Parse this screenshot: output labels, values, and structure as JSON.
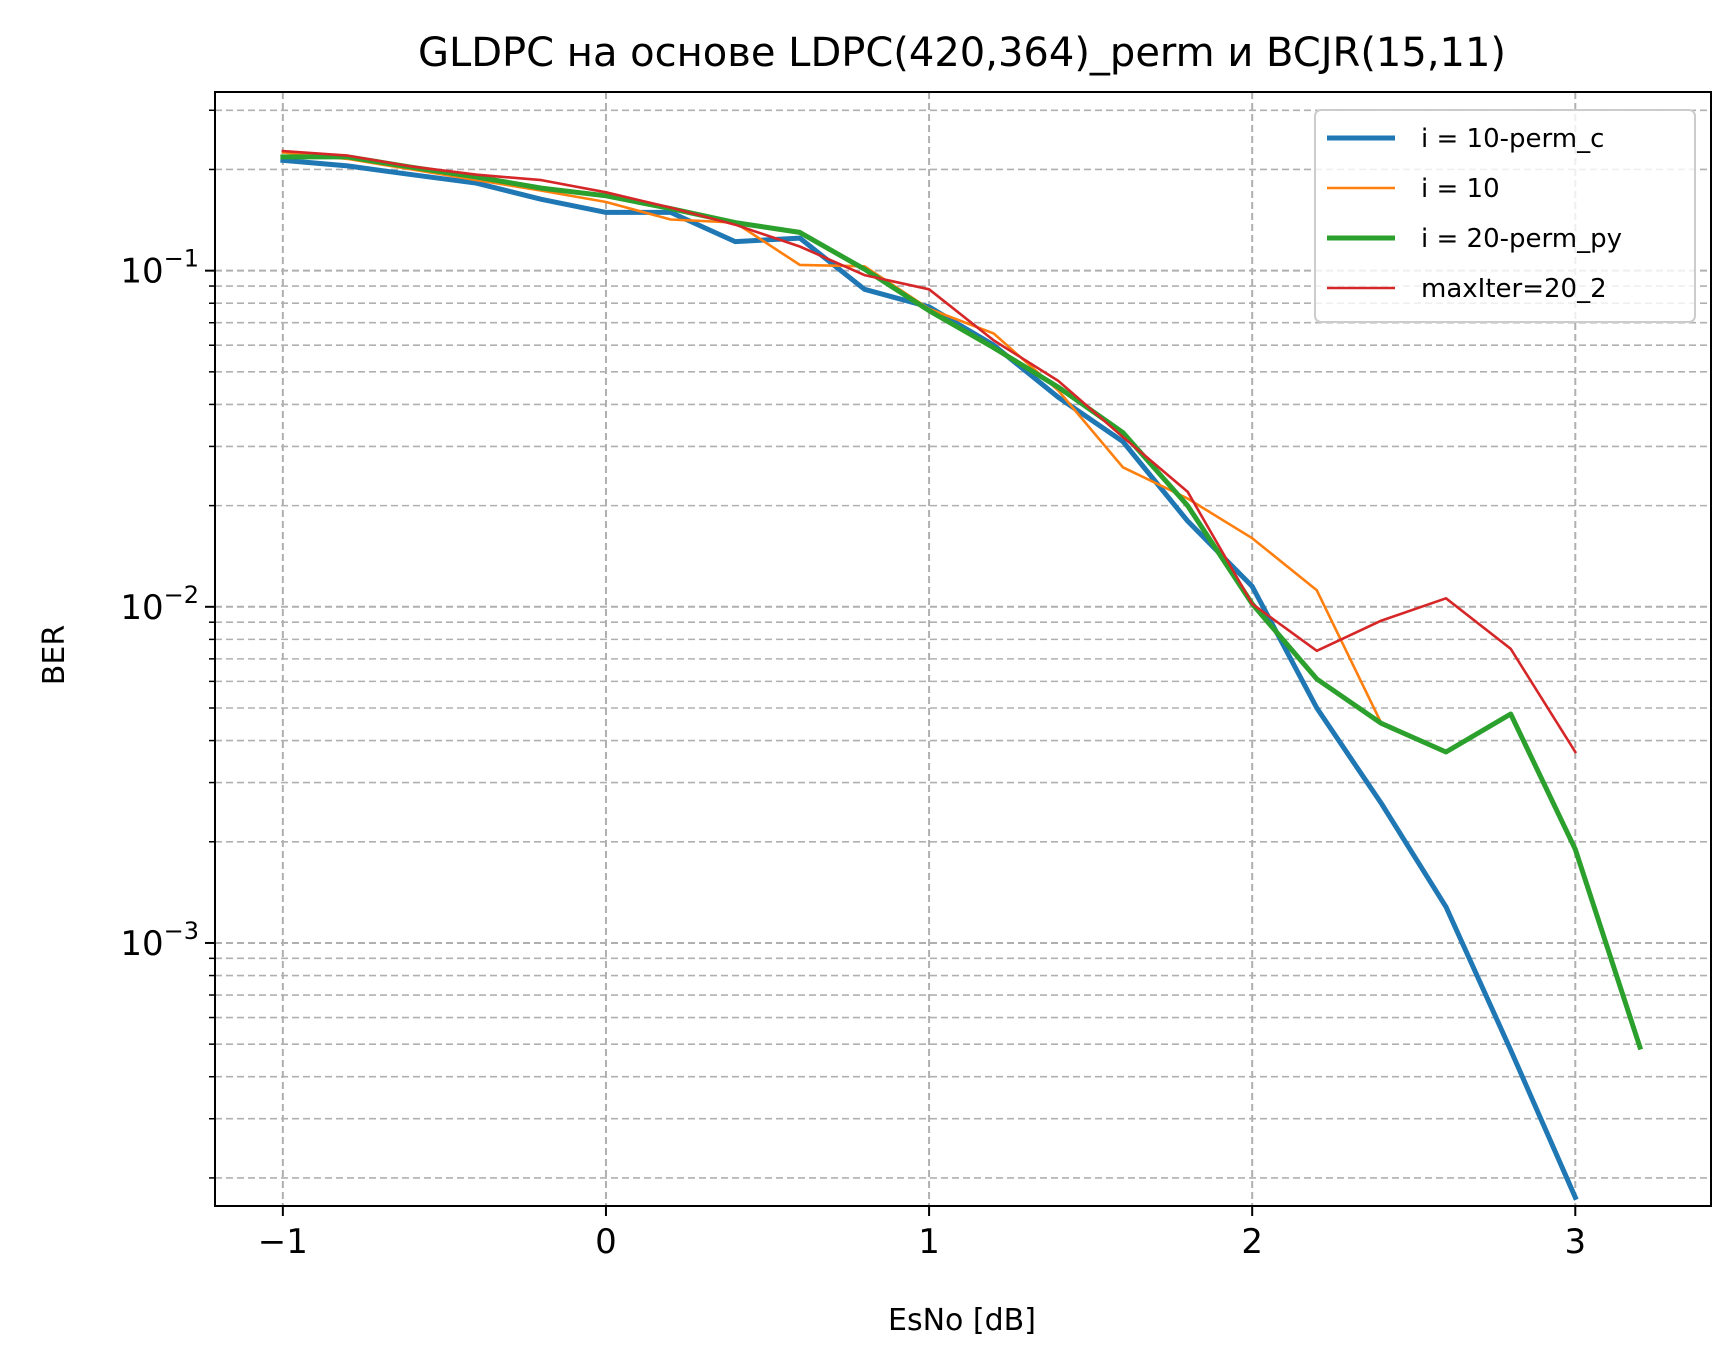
{
  "chart_data": {
    "type": "line",
    "title": "GLDPC на основе LDPC(420,364)_perm и BCJR(15,11)",
    "xlabel": "EsNo [dB]",
    "ylabel": "BER",
    "x_ticks": [
      -1,
      0,
      1,
      2,
      3
    ],
    "x_tick_labels": [
      "−1",
      "0",
      "1",
      "2",
      "3"
    ],
    "y_scale": "log",
    "y_ticks": [
      0.1,
      0.01,
      0.001
    ],
    "y_tick_labels": [
      {
        "base": "10",
        "exp": "−1"
      },
      {
        "base": "10",
        "exp": "−2"
      },
      {
        "base": "10",
        "exp": "−3"
      }
    ],
    "xlim": [
      -1.21,
      3.42
    ],
    "ylim": [
      0.000165,
      0.34
    ],
    "grid": "both, dashed (major and minor)",
    "legend_position": "top-right",
    "series": [
      {
        "name": "i = 10-perm_c",
        "color": "#1f77b4",
        "width": "thick",
        "x": [
          -1,
          -0.8,
          -0.6,
          -0.4,
          -0.2,
          0,
          0.2,
          0.4,
          0.6,
          0.8,
          1,
          1.2,
          1.4,
          1.6,
          1.8,
          2,
          2.2,
          2.4,
          2.6,
          2.8,
          3
        ],
        "y": [
          0.213,
          0.205,
          0.193,
          0.182,
          0.163,
          0.149,
          0.149,
          0.122,
          0.125,
          0.088,
          0.078,
          0.06,
          0.042,
          0.031,
          0.018,
          0.0115,
          0.005,
          0.0026,
          0.00128,
          0.00048,
          0.000175
        ]
      },
      {
        "name": "i = 10",
        "color": "#ff7f0e",
        "width": "thin",
        "x": [
          -1,
          -0.8,
          -0.6,
          -0.4,
          -0.2,
          0,
          0.2,
          0.4,
          0.6,
          0.8,
          1,
          1.2,
          1.4,
          1.6,
          1.8,
          2,
          2.2,
          2.4
        ],
        "y": [
          0.225,
          0.215,
          0.2,
          0.186,
          0.173,
          0.16,
          0.142,
          0.139,
          0.104,
          0.103,
          0.077,
          0.065,
          0.044,
          0.026,
          0.021,
          0.016,
          0.0112,
          0.0045
        ]
      },
      {
        "name": "i = 20-perm_py",
        "color": "#2ca02c",
        "width": "thick",
        "x": [
          -1,
          -0.8,
          -0.6,
          -0.4,
          -0.2,
          0,
          0.2,
          0.4,
          0.6,
          0.8,
          1,
          1.2,
          1.4,
          1.6,
          1.8,
          2,
          2.2,
          2.4,
          2.6,
          2.8,
          3,
          3.2
        ],
        "y": [
          0.218,
          0.218,
          0.203,
          0.19,
          0.176,
          0.167,
          0.153,
          0.139,
          0.13,
          0.101,
          0.076,
          0.059,
          0.045,
          0.033,
          0.02,
          0.0102,
          0.0061,
          0.0045,
          0.0037,
          0.0048,
          0.0019,
          0.00049
        ]
      },
      {
        "name": "maxIter=20_2",
        "color": "#d62728",
        "width": "thin",
        "x": [
          -1,
          -0.8,
          -0.6,
          -0.4,
          -0.2,
          0,
          0.2,
          0.4,
          0.6,
          0.8,
          1,
          1.2,
          1.4,
          1.6,
          1.8,
          2,
          2.2,
          2.4,
          2.6,
          2.8,
          3
        ],
        "y": [
          0.227,
          0.22,
          0.204,
          0.193,
          0.186,
          0.171,
          0.154,
          0.137,
          0.118,
          0.097,
          0.088,
          0.062,
          0.047,
          0.032,
          0.022,
          0.0102,
          0.0074,
          0.0091,
          0.0106,
          0.0075,
          0.0037
        ]
      }
    ]
  }
}
